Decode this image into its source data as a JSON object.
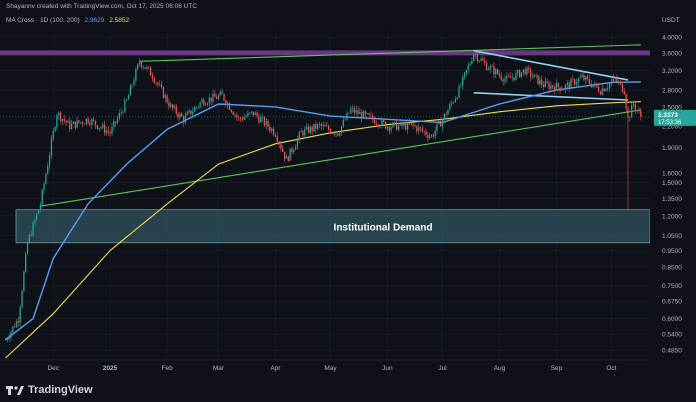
{
  "header": {
    "author_line": "Shayannv created with TradingView.com, Oct 17, 2025 06:06 UTC",
    "indicator_name": "MA Cross · 1D (100, 200)",
    "ma_fast_value": "2.9629",
    "ma_slow_value": "2.5852"
  },
  "price_axis": {
    "currency": "USDT",
    "ticks": [
      "4.0000",
      "3.6000",
      "3.2000",
      "2.8000",
      "2.5000",
      "2.2000",
      "1.9000",
      "1.6000",
      "1.5000",
      "1.3500",
      "1.2000",
      "1.0500",
      "0.9500",
      "0.8500",
      "0.7500",
      "0.6750",
      "0.6000",
      "0.5400",
      "0.4850"
    ],
    "last_price": "2.3373",
    "countdown": "17:53:36"
  },
  "time_axis": {
    "labels": [
      "Dec",
      "2025",
      "Feb",
      "Mar",
      "Apr",
      "May",
      "Jun",
      "Jul",
      "Aug",
      "Sep",
      "Oct"
    ]
  },
  "zone_label": "Institutional Demand",
  "footer": {
    "brand": "TradingView"
  },
  "chart_data": {
    "type": "candlestick",
    "title": "",
    "scale": "log",
    "ylim": [
      0.46,
      4.2
    ],
    "xlabel": "",
    "ylabel": "",
    "grid": true,
    "colors": {
      "up": "#26a69a",
      "down": "#ef5350",
      "ma_fast": "#5b9cf6",
      "ma_slow": "#f0dc4e",
      "trend": "#58c558",
      "resistance": "#8e44ad",
      "zone": "#3d6b78",
      "triangle": "#8fd1ee"
    },
    "price_path": [
      {
        "x": "Nov 5",
        "y": 0.52
      },
      {
        "x": "Nov 12",
        "y": 0.6
      },
      {
        "x": "Nov 17",
        "y": 1.0
      },
      {
        "x": "Nov 24",
        "y": 1.3
      },
      {
        "x": "Dec 3",
        "y": 2.4
      },
      {
        "x": "Dec 10",
        "y": 2.2
      },
      {
        "x": "Dec 20",
        "y": 2.3
      },
      {
        "x": "Jan 1",
        "y": 2.1
      },
      {
        "x": "Jan 10",
        "y": 2.6
      },
      {
        "x": "Jan 17",
        "y": 3.4
      },
      {
        "x": "Jan 24",
        "y": 3.1
      },
      {
        "x": "Feb 3",
        "y": 2.5
      },
      {
        "x": "Feb 10",
        "y": 2.3
      },
      {
        "x": "Feb 20",
        "y": 2.6
      },
      {
        "x": "Mar 3",
        "y": 2.7
      },
      {
        "x": "Mar 12",
        "y": 2.3
      },
      {
        "x": "Mar 20",
        "y": 2.4
      },
      {
        "x": "Apr 1",
        "y": 2.1
      },
      {
        "x": "Apr 7",
        "y": 1.75
      },
      {
        "x": "Apr 15",
        "y": 2.1
      },
      {
        "x": "Apr 25",
        "y": 2.2
      },
      {
        "x": "May 5",
        "y": 2.1
      },
      {
        "x": "May 12",
        "y": 2.45
      },
      {
        "x": "May 20",
        "y": 2.35
      },
      {
        "x": "Jun 1",
        "y": 2.2
      },
      {
        "x": "Jun 15",
        "y": 2.2
      },
      {
        "x": "Jun 25",
        "y": 2.05
      },
      {
        "x": "Jul 1",
        "y": 2.3
      },
      {
        "x": "Jul 10",
        "y": 2.8
      },
      {
        "x": "Jul 18",
        "y": 3.6
      },
      {
        "x": "Jul 25",
        "y": 3.3
      },
      {
        "x": "Aug 5",
        "y": 3.0
      },
      {
        "x": "Aug 15",
        "y": 3.2
      },
      {
        "x": "Aug 25",
        "y": 2.9
      },
      {
        "x": "Sep 5",
        "y": 2.85
      },
      {
        "x": "Sep 15",
        "y": 3.05
      },
      {
        "x": "Sep 25",
        "y": 2.8
      },
      {
        "x": "Oct 3",
        "y": 3.0
      },
      {
        "x": "Oct 8",
        "y": 2.8
      },
      {
        "x": "Oct 10",
        "y": 2.3
      },
      {
        "x": "Oct 13",
        "y": 2.55
      },
      {
        "x": "Oct 17",
        "y": 2.34
      }
    ],
    "wick_low": {
      "x": "Oct 10",
      "y": 1.25
    },
    "ma_fast": [
      {
        "x": "Nov 5",
        "y": 0.52
      },
      {
        "x": "Nov 20",
        "y": 0.6
      },
      {
        "x": "Dec 1",
        "y": 0.9
      },
      {
        "x": "Dec 20",
        "y": 1.3
      },
      {
        "x": "Jan 10",
        "y": 1.7
      },
      {
        "x": "Feb 1",
        "y": 2.15
      },
      {
        "x": "Mar 1",
        "y": 2.55
      },
      {
        "x": "Apr 1",
        "y": 2.5
      },
      {
        "x": "May 1",
        "y": 2.35
      },
      {
        "x": "Jun 1",
        "y": 2.3
      },
      {
        "x": "Jul 1",
        "y": 2.25
      },
      {
        "x": "Aug 1",
        "y": 2.55
      },
      {
        "x": "Sep 1",
        "y": 2.8
      },
      {
        "x": "Oct 1",
        "y": 2.95
      },
      {
        "x": "Oct 17",
        "y": 2.96
      }
    ],
    "ma_slow": [
      {
        "x": "Nov 5",
        "y": 0.46
      },
      {
        "x": "Dec 1",
        "y": 0.62
      },
      {
        "x": "Jan 1",
        "y": 0.95
      },
      {
        "x": "Feb 1",
        "y": 1.3
      },
      {
        "x": "Mar 1",
        "y": 1.7
      },
      {
        "x": "Apr 1",
        "y": 1.95
      },
      {
        "x": "May 1",
        "y": 2.1
      },
      {
        "x": "Jun 1",
        "y": 2.22
      },
      {
        "x": "Jul 1",
        "y": 2.3
      },
      {
        "x": "Aug 1",
        "y": 2.42
      },
      {
        "x": "Sep 1",
        "y": 2.52
      },
      {
        "x": "Oct 1",
        "y": 2.57
      },
      {
        "x": "Oct 17",
        "y": 2.59
      }
    ],
    "drawings": {
      "resistance_level": 3.6,
      "demand_zone": [
        1.0,
        1.25
      ],
      "upper_trendline": [
        {
          "x": "Jan 17",
          "y": 3.4
        },
        {
          "x": "Oct 17",
          "y": 3.8
        }
      ],
      "lower_trendline": [
        {
          "x": "Nov 24",
          "y": 1.28
        },
        {
          "x": "Oct 17",
          "y": 2.45
        }
      ],
      "triangle_top": [
        {
          "x": "Jul 18",
          "y": 3.65
        },
        {
          "x": "Oct 10",
          "y": 3.0
        }
      ],
      "triangle_bottom": [
        {
          "x": "Jul 18",
          "y": 2.75
        },
        {
          "x": "Oct 10",
          "y": 2.62
        }
      ]
    }
  }
}
